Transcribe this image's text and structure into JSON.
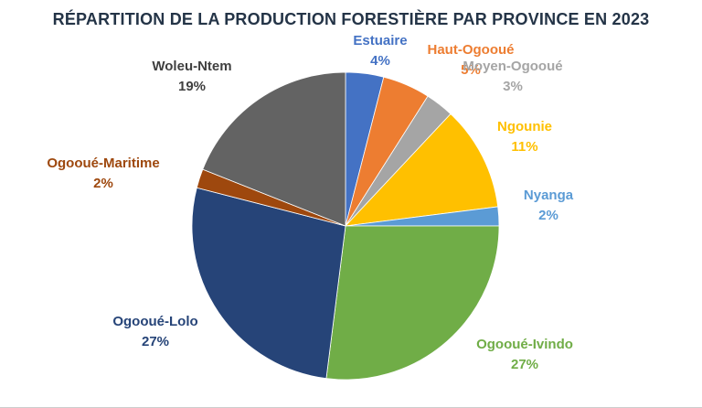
{
  "chart_data": {
    "type": "pie",
    "title": "RÉPARTITION DE LA PRODUCTION FORESTIÈRE PAR PROVINCE EN 2023",
    "title_color": "#243447",
    "start_angle_deg": 0,
    "direction": "clockwise",
    "legend_position": "none",
    "label_style": "category name above percent, text colored to match slice",
    "total": 100,
    "slices": [
      {
        "label": "Estuaire",
        "value": 4,
        "pct_label": "4%",
        "color": "#4472C4"
      },
      {
        "label": "Haut-Ogooué",
        "value": 5,
        "pct_label": "5%",
        "color": "#ED7D31"
      },
      {
        "label": "Moyen-Ogooué",
        "value": 3,
        "pct_label": "3%",
        "color": "#A5A5A5"
      },
      {
        "label": "Ngounie",
        "value": 11,
        "pct_label": "11%",
        "color": "#FFC000"
      },
      {
        "label": "Nyanga",
        "value": 2,
        "pct_label": "2%",
        "color": "#5B9BD5"
      },
      {
        "label": "Ogooué-Ivindo",
        "value": 27,
        "pct_label": "27%",
        "color": "#70AD47"
      },
      {
        "label": "Ogooué-Lolo",
        "value": 27,
        "pct_label": "27%",
        "color": "#264478"
      },
      {
        "label": "Ogooué-Maritime",
        "value": 2,
        "pct_label": "2%",
        "color": "#9E480E"
      },
      {
        "label": "Woleu-Ntem",
        "value": 19,
        "pct_label": "19%",
        "color": "#636363",
        "label_color": "#404040"
      }
    ]
  }
}
